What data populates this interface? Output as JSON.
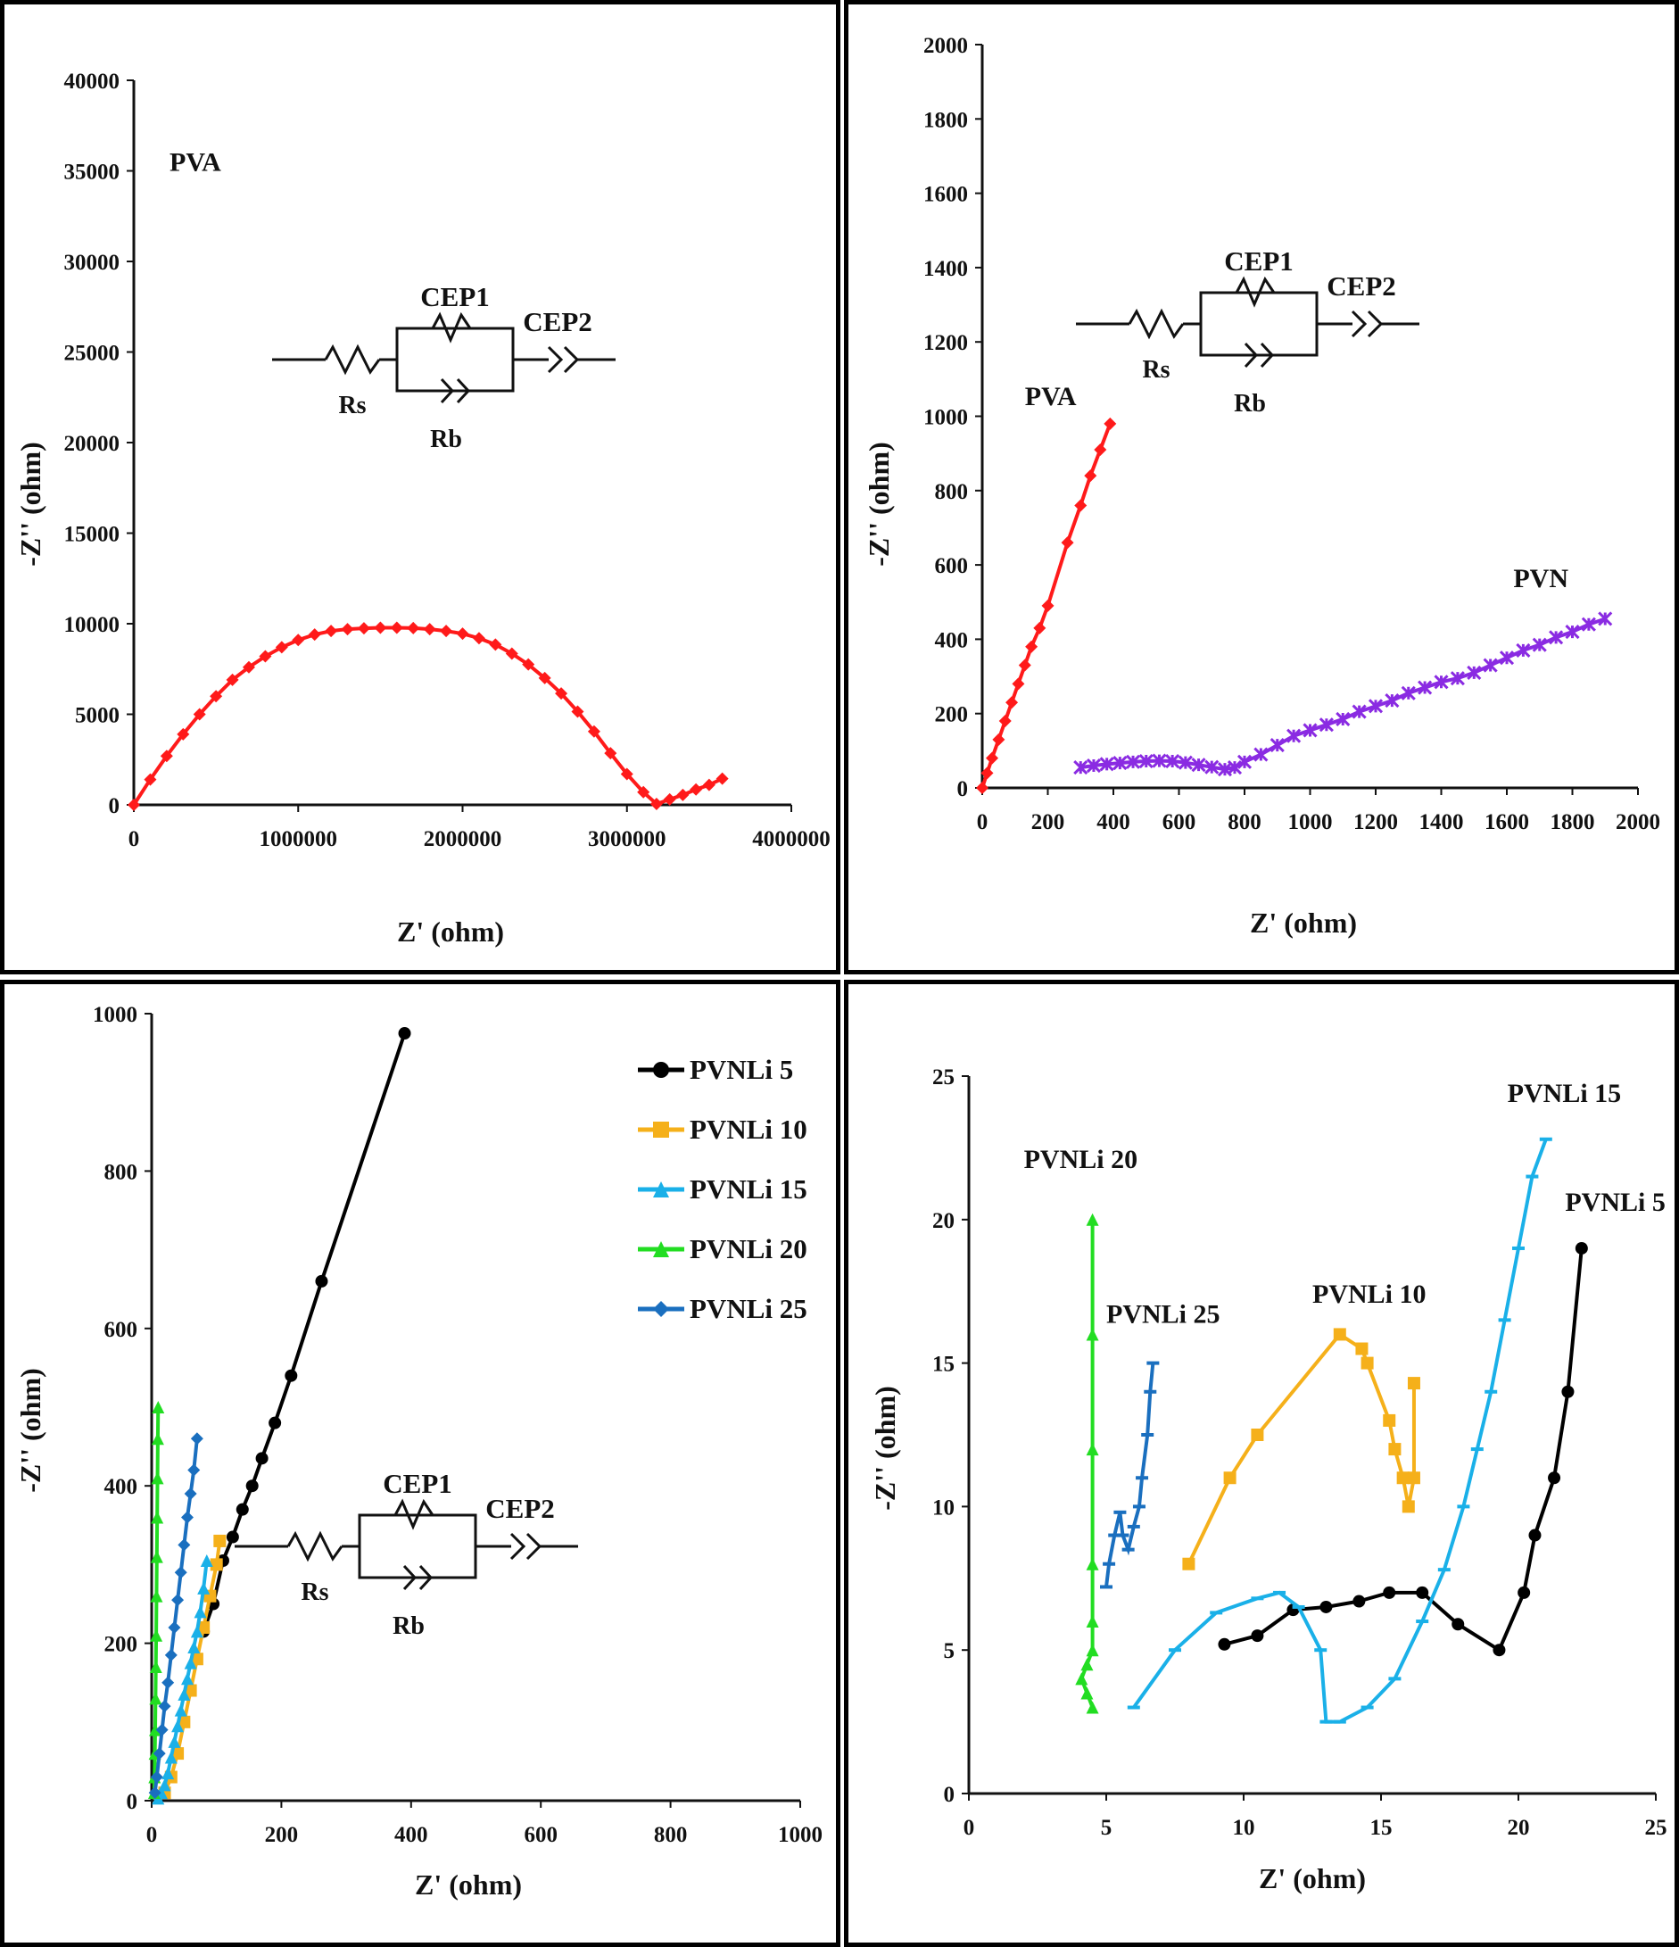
{
  "panels": [
    {
      "id": "a",
      "annotations": [
        {
          "text": "PVA",
          "x": 0,
          "y": 35000
        }
      ],
      "circuit": {
        "cep1": "CEP1",
        "cep2": "CEP2",
        "rs": "Rs",
        "rb": "Rb"
      },
      "chart_data": {
        "type": "line",
        "xlabel": "Z' (ohm)",
        "ylabel": "-Z'' (ohm)",
        "xlim": [
          0,
          4000000
        ],
        "ylim": [
          0,
          40000
        ],
        "xticks": [
          0,
          1000000,
          2000000,
          3000000,
          4000000
        ],
        "yticks": [
          0,
          5000,
          10000,
          15000,
          20000,
          25000,
          30000,
          35000,
          40000
        ],
        "series": [
          {
            "name": "PVA",
            "color": "#ff1a1a",
            "marker": "diamond",
            "x": [
              0,
              100000,
              200000,
              300000,
              400000,
              500000,
              600000,
              700000,
              800000,
              900000,
              1000000,
              1100000,
              1200000,
              1300000,
              1400000,
              1500000,
              1600000,
              1700000,
              1800000,
              1900000,
              2000000,
              2100000,
              2200000,
              2300000,
              2400000,
              2500000,
              2600000,
              2700000,
              2800000,
              2900000,
              3000000,
              3100000,
              3180000,
              3260000,
              3340000,
              3420000,
              3500000,
              3580000
            ],
            "y": [
              0,
              1400,
              2700,
              3900,
              5000,
              6000,
              6900,
              7600,
              8200,
              8700,
              9100,
              9400,
              9600,
              9700,
              9750,
              9780,
              9780,
              9760,
              9700,
              9600,
              9450,
              9200,
              8850,
              8350,
              7750,
              7000,
              6150,
              5150,
              4050,
              2850,
              1700,
              700,
              50,
              300,
              550,
              850,
              1100,
              1450
            ]
          }
        ]
      }
    },
    {
      "id": "b",
      "annotations": [
        {
          "text": "PVA",
          "x": 130,
          "y": 1030
        },
        {
          "text": "PVN",
          "x": 1620,
          "y": 540
        }
      ],
      "circuit": {
        "cep1": "CEP1",
        "cep2": "CEP2",
        "rs": "Rs",
        "rb": "Rb"
      },
      "chart_data": {
        "type": "line",
        "xlabel": "Z' (ohm)",
        "ylabel": "-Z'' (ohm)",
        "xlim": [
          0,
          2000
        ],
        "ylim": [
          0,
          2000
        ],
        "xticks": [
          0,
          200,
          400,
          600,
          800,
          1000,
          1200,
          1400,
          1600,
          1800,
          2000
        ],
        "yticks": [
          0,
          200,
          400,
          600,
          800,
          1000,
          1200,
          1400,
          1600,
          1800,
          2000
        ],
        "series": [
          {
            "name": "PVA",
            "color": "#ff1a1a",
            "marker": "diamond",
            "x": [
              0,
              15,
              30,
              50,
              70,
              90,
              110,
              130,
              150,
              175,
              200,
              260,
              300,
              330,
              360,
              390
            ],
            "y": [
              0,
              40,
              80,
              130,
              180,
              230,
              280,
              330,
              380,
              430,
              490,
              660,
              760,
              840,
              910,
              980
            ]
          },
          {
            "name": "PVN",
            "color": "#8a2be2",
            "marker": "star",
            "x": [
              300,
              340,
              380,
              420,
              460,
              500,
              540,
              580,
              620,
              660,
              700,
              740,
              770,
              800,
              850,
              900,
              950,
              1000,
              1050,
              1100,
              1150,
              1200,
              1250,
              1300,
              1350,
              1400,
              1450,
              1500,
              1550,
              1600,
              1650,
              1700,
              1750,
              1800,
              1850,
              1900
            ],
            "y": [
              55,
              60,
              64,
              67,
              70,
              72,
              73,
              72,
              68,
              62,
              56,
              50,
              55,
              70,
              90,
              115,
              140,
              155,
              170,
              185,
              205,
              220,
              235,
              255,
              270,
              285,
              295,
              310,
              330,
              350,
              370,
              385,
              405,
              420,
              440,
              455
            ]
          }
        ]
      }
    },
    {
      "id": "c",
      "circuit": {
        "cep1": "CEP1",
        "cep2": "CEP2",
        "rs": "Rs",
        "rb": "Rb"
      },
      "chart_data": {
        "type": "line",
        "xlabel": "Z' (ohm)",
        "ylabel": "-Z'' (ohm)",
        "xlim": [
          0,
          1000
        ],
        "ylim": [
          0,
          1000
        ],
        "xticks": [
          0,
          200,
          400,
          600,
          800,
          1000
        ],
        "yticks": [
          0,
          200,
          400,
          600,
          800,
          1000
        ],
        "legend": "top-right",
        "series": [
          {
            "name": "PVNLi 5",
            "color": "#000000",
            "marker": "circle",
            "x": [
              80,
              95,
              110,
              125,
              140,
              155,
              170,
              190,
              215,
              262,
              390
            ],
            "y": [
              215,
              250,
              305,
              335,
              370,
              400,
              435,
              480,
              540,
              660,
              975
            ]
          },
          {
            "name": "PVNLi 10",
            "color": "#f5b01a",
            "marker": "square",
            "x": [
              20,
              30,
              40,
              50,
              60,
              70,
              80,
              90,
              100,
              105
            ],
            "y": [
              10,
              30,
              60,
              100,
              140,
              180,
              220,
              260,
              300,
              330
            ]
          },
          {
            "name": "PVNLi 15",
            "color": "#1ab0e8",
            "marker": "triangle",
            "x": [
              10,
              15,
              20,
              25,
              30,
              35,
              40,
              45,
              50,
              55,
              60,
              65,
              70,
              75,
              80,
              85
            ],
            "y": [
              3,
              10,
              20,
              35,
              55,
              75,
              95,
              115,
              135,
              155,
              175,
              195,
              215,
              240,
              270,
              305
            ]
          },
          {
            "name": "PVNLi 20",
            "color": "#22dd22",
            "marker": "triangle",
            "x": [
              4,
              4.5,
              5,
              5.5,
              6,
              6.5,
              7,
              7.5,
              8,
              8.5,
              9,
              9.5,
              10
            ],
            "y": [
              10,
              30,
              60,
              90,
              130,
              170,
              210,
              260,
              310,
              360,
              410,
              460,
              500
            ]
          },
          {
            "name": "PVNLi 25",
            "color": "#1a6fbf",
            "marker": "diamond",
            "x": [
              5,
              8,
              12,
              16,
              20,
              25,
              30,
              35,
              40,
              45,
              50,
              55,
              60,
              65,
              70
            ],
            "y": [
              10,
              30,
              60,
              90,
              120,
              150,
              185,
              220,
              255,
              290,
              325,
              360,
              390,
              420,
              460
            ]
          }
        ]
      }
    },
    {
      "id": "d",
      "annotations": [
        {
          "text": "PVNLi 20",
          "x": 2,
          "y": 21.8
        },
        {
          "text": "PVNLi 25",
          "x": 5,
          "y": 16.4
        },
        {
          "text": "PVNLi 10",
          "x": 12.5,
          "y": 17.1
        },
        {
          "text": "PVNLi 15",
          "x": 19.6,
          "y": 24.1
        },
        {
          "text": "PVNLi 5",
          "x": 21.7,
          "y": 20.3
        }
      ],
      "chart_data": {
        "type": "line",
        "xlabel": "Z' (ohm)",
        "ylabel": "-Z'' (ohm)",
        "xlim": [
          0,
          25
        ],
        "ylim": [
          0,
          25
        ],
        "xticks": [
          0,
          5,
          10,
          15,
          20,
          25
        ],
        "yticks": [
          0,
          5,
          10,
          15,
          20,
          25
        ],
        "series": [
          {
            "name": "PVNLi 5",
            "color": "#000000",
            "marker": "circle",
            "x": [
              9.3,
              10.5,
              11.8,
              13.0,
              14.2,
              15.3,
              16.5,
              17.8,
              19.3,
              20.2,
              20.6,
              21.3,
              21.8,
              22.3
            ],
            "y": [
              5.2,
              5.5,
              6.4,
              6.5,
              6.7,
              7.0,
              7.0,
              5.9,
              5.0,
              7.0,
              9.0,
              11.0,
              14.0,
              19.0
            ]
          },
          {
            "name": "PVNLi 10",
            "color": "#f5b01a",
            "marker": "square",
            "x": [
              8.0,
              9.5,
              10.5,
              13.5,
              14.3,
              14.5,
              15.3,
              15.5,
              15.8,
              16.0,
              16.2,
              16.2
            ],
            "y": [
              8.0,
              11.0,
              12.5,
              16.0,
              15.5,
              15.0,
              13.0,
              12.0,
              11.0,
              10.0,
              11.0,
              14.3
            ]
          },
          {
            "name": "PVNLi 15",
            "color": "#1ab0e8",
            "marker": "dash",
            "x": [
              6.0,
              7.5,
              9.0,
              10.5,
              11.3,
              12.0,
              12.8,
              13.0,
              13.5,
              14.5,
              15.5,
              16.5,
              17.3,
              18.0,
              18.5,
              19.0,
              19.5,
              20.0,
              20.5,
              21.0
            ],
            "y": [
              3.0,
              5.0,
              6.3,
              6.8,
              7.0,
              6.5,
              5.0,
              2.5,
              2.5,
              3.0,
              4.0,
              6.0,
              7.8,
              10.0,
              12.0,
              14.0,
              16.5,
              19.0,
              21.5,
              22.8
            ]
          },
          {
            "name": "PVNLi 20",
            "color": "#22dd22",
            "marker": "triangle",
            "x": [
              4.5,
              4.3,
              4.1,
              4.3,
              4.5,
              4.5,
              4.5,
              4.5,
              4.5,
              4.5
            ],
            "y": [
              3.0,
              3.5,
              4.0,
              4.5,
              5.0,
              6.0,
              8.0,
              12.0,
              16.0,
              20.0
            ]
          },
          {
            "name": "PVNLi 25",
            "color": "#1a6fbf",
            "marker": "dash",
            "x": [
              5.0,
              5.1,
              5.3,
              5.5,
              5.6,
              5.8,
              6.0,
              6.2,
              6.3,
              6.5,
              6.6,
              6.7
            ],
            "y": [
              7.2,
              8.0,
              9.0,
              9.8,
              9.0,
              8.5,
              9.3,
              10.0,
              11.0,
              12.5,
              14.0,
              15.0
            ]
          }
        ]
      }
    }
  ]
}
